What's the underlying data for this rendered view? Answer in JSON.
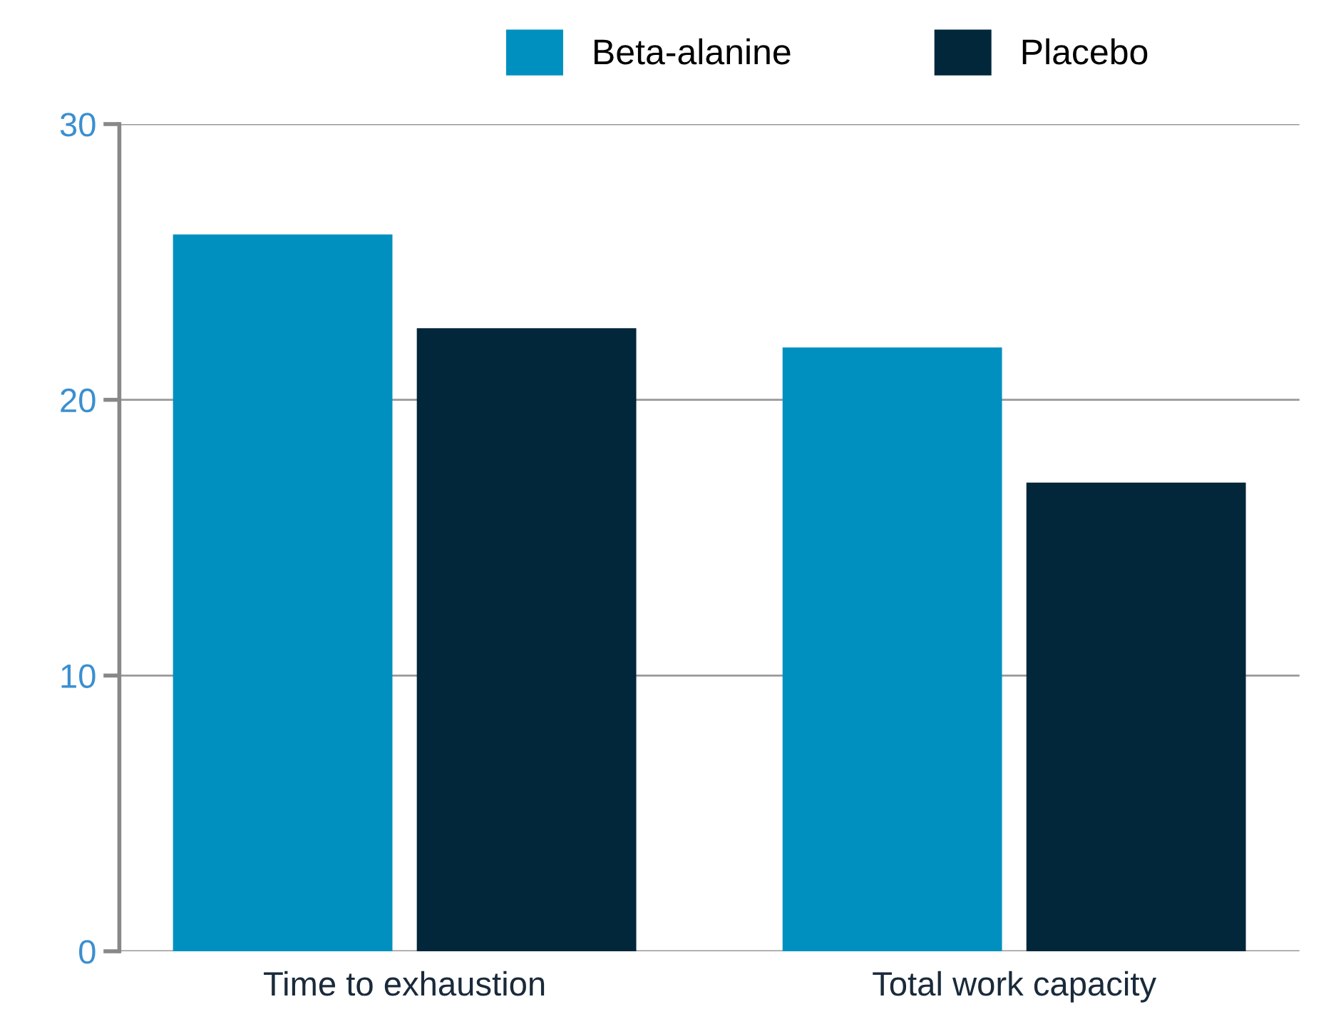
{
  "chart_data": {
    "type": "bar",
    "categories": [
      "Time to exhaustion",
      "Total work capacity"
    ],
    "series": [
      {
        "name": "Beta-alanine",
        "color": "#0090c0",
        "values": [
          26,
          21.9
        ]
      },
      {
        "name": "Placebo",
        "color": "#02263a",
        "values": [
          22.6,
          17
        ]
      }
    ],
    "ylim": [
      0,
      30
    ],
    "yticks": [
      0,
      10,
      20,
      30
    ],
    "grid": "y",
    "legend": "top"
  }
}
